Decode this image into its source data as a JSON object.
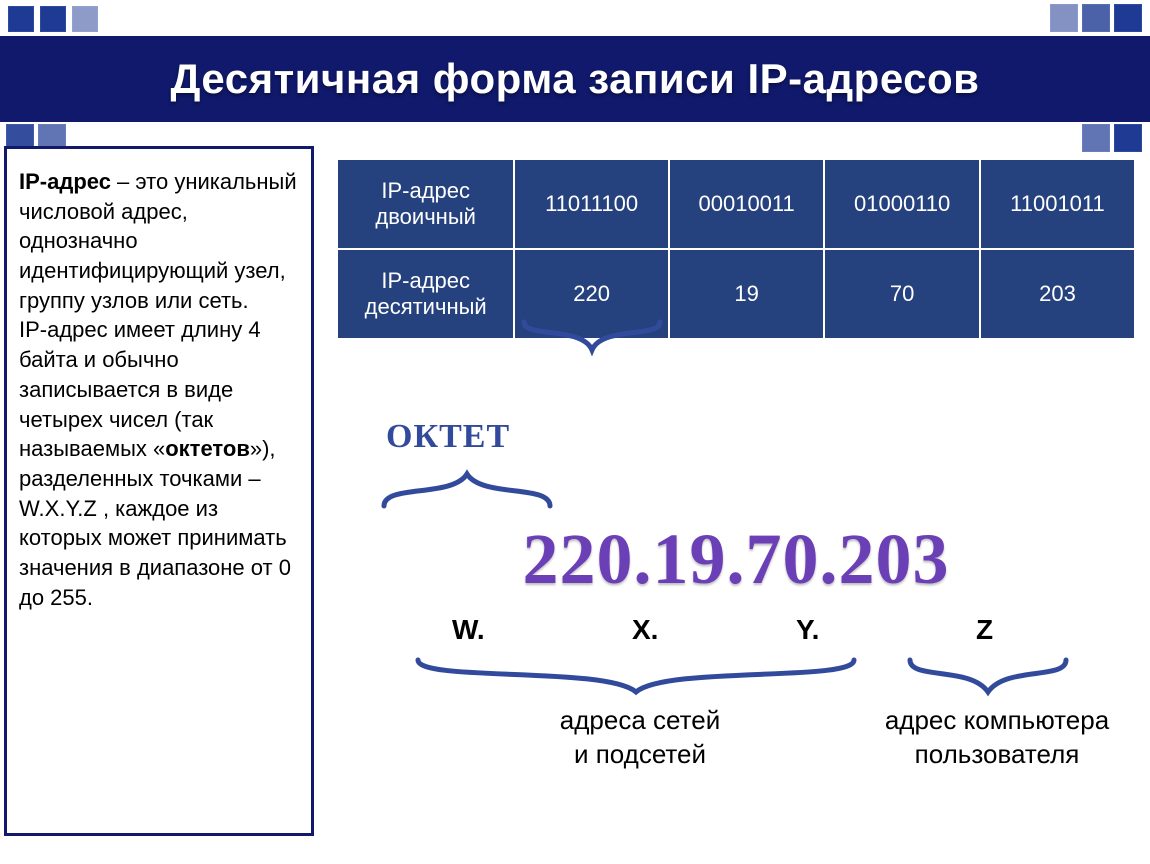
{
  "title": "Десятичная форма записи IP-адресов",
  "definition": {
    "term": "IP-адрес",
    "body_html": " – это уникальный числовой адрес, однозначно идентифицирующий узел, группу узлов или сеть.<br>IP-адрес имеет длину 4 байта и обычно записывается в виде четырех чисел (так называемых «<b>октетов</b>»), разделенных точками – W.X.Y.Z , каждое из которых может принимать значения в диапазоне от 0 до 255."
  },
  "table": {
    "row1_label": "IP-адрес двоичный",
    "row2_label": "IP-адрес десятичный",
    "binary": [
      "11011100",
      "00010011",
      "01000110",
      "11001011"
    ],
    "decimal": [
      "220",
      "19",
      "70",
      "203"
    ]
  },
  "oktet_label": "ОКТЕТ",
  "ip_display": "220.19.70.203",
  "parts": {
    "w": "W.",
    "x": "X.",
    "y": "Y.",
    "z": "Z"
  },
  "captions": {
    "network": "адреса сетей\nи подсетей",
    "host": "адрес компьютера\nпользователя"
  },
  "colors": {
    "title_bg": "#10196b",
    "table_cell": "#26427e",
    "accent_purple": "#6b3fb5",
    "bracket": "#324a9b"
  }
}
